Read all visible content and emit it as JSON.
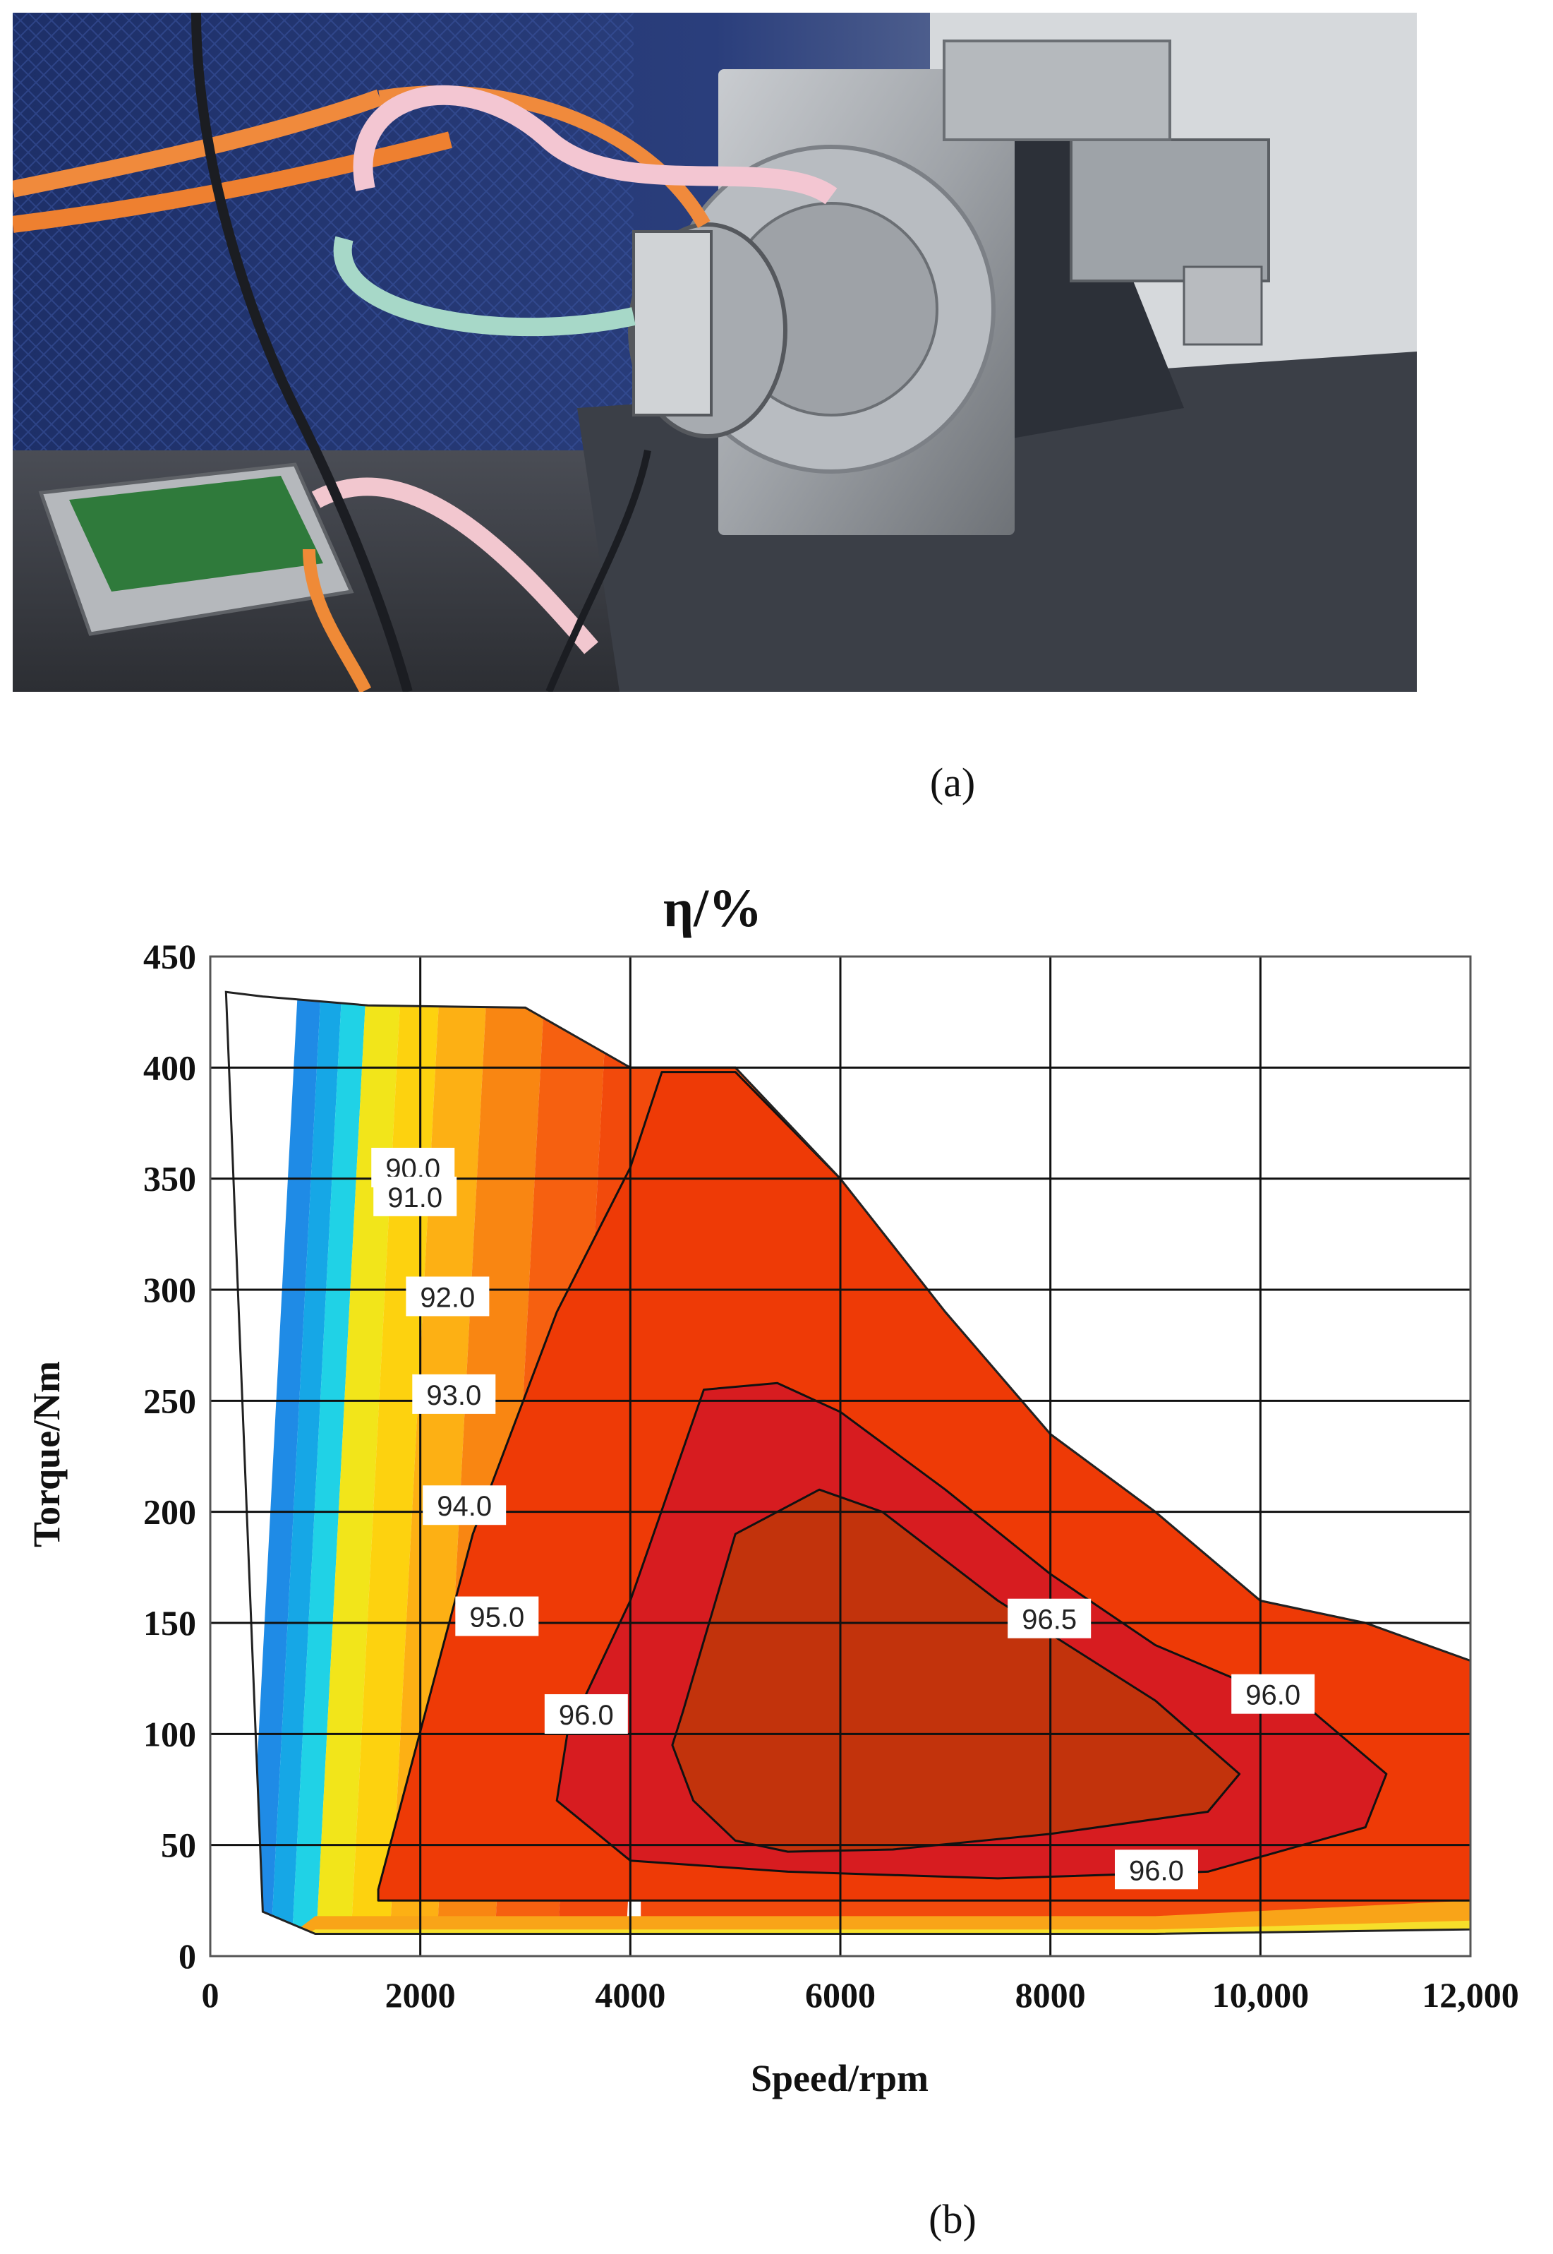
{
  "figure": {
    "caption_a": "(a)",
    "caption_b": "(b)"
  },
  "photo": {
    "subject": "motor test bench with inverter board and cooling hoses"
  },
  "chart_data": {
    "type": "contour",
    "title": "η/%",
    "xlabel": "Speed/rpm",
    "ylabel": "Torque/Nm",
    "xlim": [
      0,
      12000
    ],
    "ylim": [
      0,
      450
    ],
    "x_ticks": [
      0,
      2000,
      4000,
      6000,
      8000,
      10000,
      12000
    ],
    "x_tick_labels": [
      "0",
      "2000",
      "4000",
      "6000",
      "8000",
      "10,000",
      "12,000"
    ],
    "y_ticks": [
      0,
      50,
      100,
      150,
      200,
      250,
      300,
      350,
      400,
      450
    ],
    "y_tick_labels": [
      "0",
      "50",
      "100",
      "150",
      "200",
      "250",
      "300",
      "350",
      "400",
      "450"
    ],
    "grid": true,
    "envelope": [
      [
        150,
        434
      ],
      [
        500,
        432
      ],
      [
        1500,
        428
      ],
      [
        3000,
        427
      ],
      [
        4000,
        400
      ],
      [
        5000,
        400
      ],
      [
        6000,
        350
      ],
      [
        7000,
        290
      ],
      [
        8000,
        235
      ],
      [
        9000,
        200
      ],
      [
        10000,
        160
      ],
      [
        11000,
        150
      ],
      [
        12000,
        133
      ],
      [
        12000,
        12
      ],
      [
        9000,
        10
      ],
      [
        4000,
        10
      ],
      [
        1000,
        10
      ],
      [
        500,
        20
      ]
    ],
    "contour_labels": [
      {
        "text": "90.0",
        "x": 1930,
        "y": 355
      },
      {
        "text": "91.0",
        "x": 1950,
        "y": 342
      },
      {
        "text": "92.0",
        "x": 2260,
        "y": 297
      },
      {
        "text": "93.0",
        "x": 2320,
        "y": 253
      },
      {
        "text": "94.0",
        "x": 2420,
        "y": 203
      },
      {
        "text": "95.0",
        "x": 2730,
        "y": 153
      },
      {
        "text": "96.0",
        "x": 3580,
        "y": 109
      },
      {
        "text": "96.5",
        "x": 7990,
        "y": 152
      },
      {
        "text": "96.0",
        "x": 10120,
        "y": 118
      },
      {
        "text": "96.0",
        "x": 9010,
        "y": 39
      }
    ],
    "regions": [
      {
        "level": "96.5",
        "color": "#c2330c",
        "boundary": [
          [
            4500,
            110
          ],
          [
            5000,
            190
          ],
          [
            5800,
            210
          ],
          [
            6400,
            200
          ],
          [
            7500,
            160
          ],
          [
            9000,
            115
          ],
          [
            9800,
            82
          ],
          [
            9500,
            65
          ],
          [
            8000,
            55
          ],
          [
            6500,
            48
          ],
          [
            5500,
            47
          ],
          [
            5000,
            52
          ],
          [
            4600,
            70
          ],
          [
            4400,
            95
          ]
        ]
      },
      {
        "level": "96.0",
        "color": "#d71c20",
        "boundary": [
          [
            3400,
            100
          ],
          [
            4000,
            160
          ],
          [
            4700,
            255
          ],
          [
            5400,
            258
          ],
          [
            6000,
            245
          ],
          [
            7000,
            210
          ],
          [
            8000,
            172
          ],
          [
            9000,
            140
          ],
          [
            10500,
            110
          ],
          [
            11200,
            82
          ],
          [
            11000,
            58
          ],
          [
            9500,
            38
          ],
          [
            7500,
            35
          ],
          [
            5500,
            38
          ],
          [
            4000,
            43
          ],
          [
            3300,
            70
          ]
        ]
      },
      {
        "level": "95.0",
        "color": "#ee3a06",
        "boundary": [
          [
            1600,
            30
          ],
          [
            2500,
            190
          ],
          [
            3300,
            290
          ],
          [
            4000,
            355
          ],
          [
            4300,
            398
          ],
          [
            5000,
            398
          ],
          [
            6000,
            350
          ],
          [
            7000,
            290
          ],
          [
            8000,
            235
          ],
          [
            9000,
            200
          ],
          [
            10000,
            160
          ],
          [
            11000,
            150
          ],
          [
            12000,
            133
          ],
          [
            12000,
            25
          ],
          [
            1600,
            25
          ]
        ]
      }
    ],
    "band_colors": [
      "#1f8be6",
      "#16a7e6",
      "#20d2e6",
      "#f2e51a",
      "#fdd20f",
      "#fdb014",
      "#f98612",
      "#f66010",
      "#f24a0c"
    ]
  }
}
